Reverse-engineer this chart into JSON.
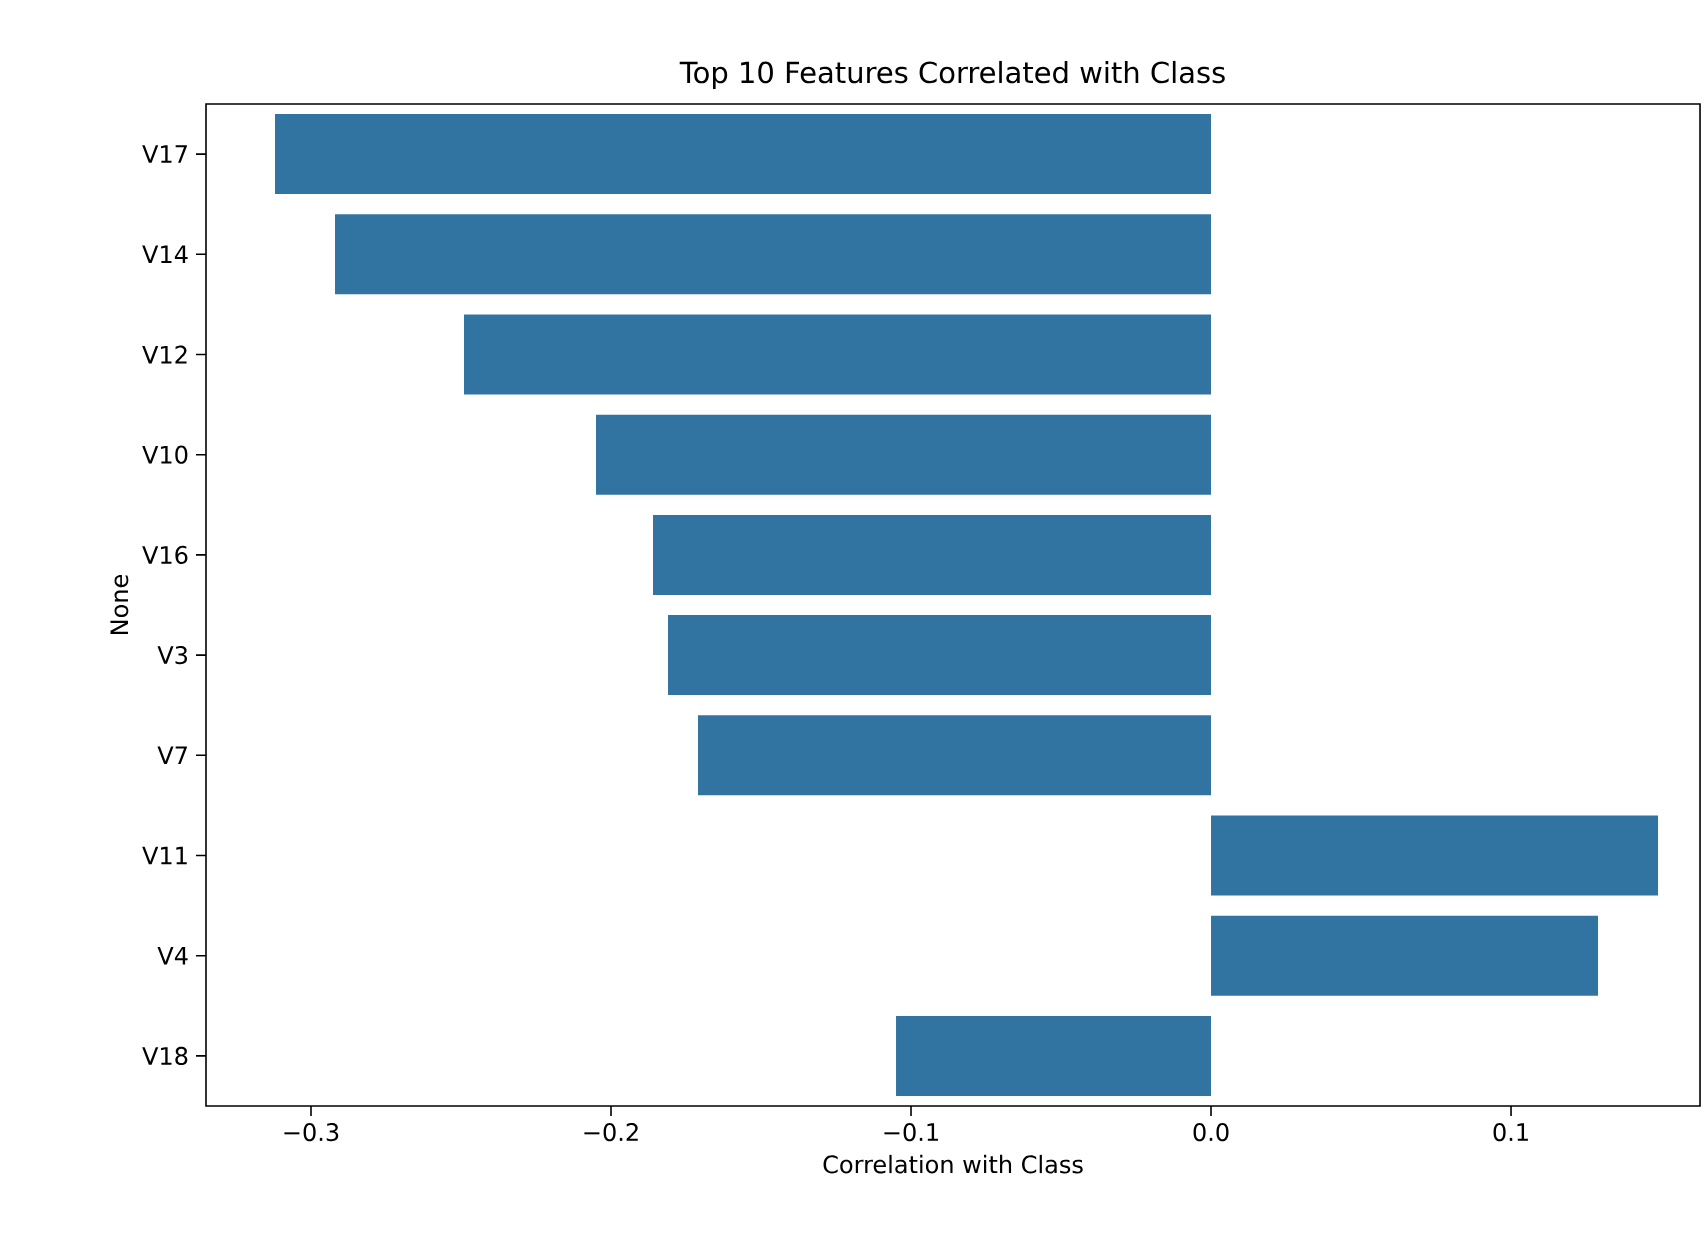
{
  "chart_data": {
    "type": "bar",
    "orientation": "horizontal",
    "title": "Top 10 Features Correlated with Class",
    "xlabel": "Correlation with Class",
    "ylabel": "None",
    "categories": [
      "V17",
      "V14",
      "V12",
      "V10",
      "V16",
      "V3",
      "V7",
      "V11",
      "V4",
      "V18"
    ],
    "values": [
      -0.312,
      -0.292,
      -0.249,
      -0.205,
      -0.186,
      -0.181,
      -0.171,
      0.149,
      0.129,
      -0.105
    ],
    "color": "#3274a1",
    "xlim": [
      -0.335,
      0.163
    ],
    "xticks": [
      {
        "value": -0.3,
        "label": "−0.3"
      },
      {
        "value": -0.2,
        "label": "−0.2"
      },
      {
        "value": -0.1,
        "label": "−0.1"
      },
      {
        "value": 0.0,
        "label": "0.0"
      },
      {
        "value": 0.1,
        "label": "0.1"
      }
    ],
    "grid": false
  }
}
